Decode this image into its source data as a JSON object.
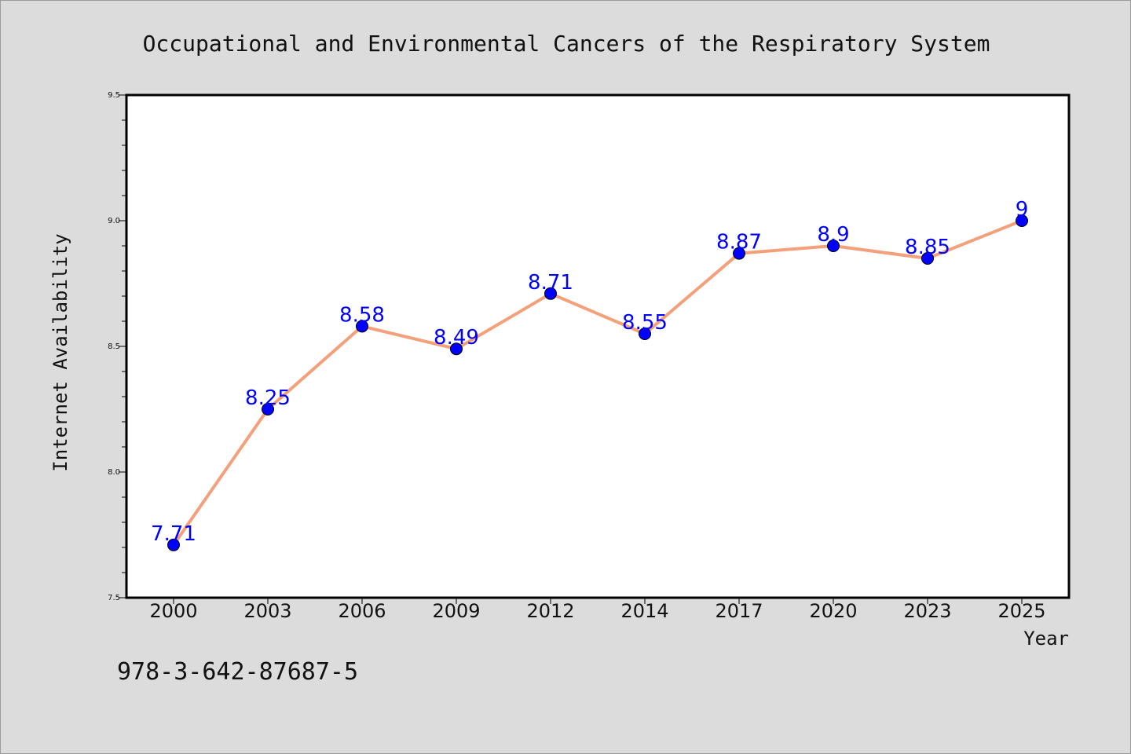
{
  "chart_data": {
    "type": "line",
    "title": "Occupational and Environmental Cancers of the Respiratory System",
    "xlabel": "Year",
    "ylabel": "Internet Availability",
    "categories": [
      "2000",
      "2003",
      "2006",
      "2009",
      "2012",
      "2014",
      "2017",
      "2020",
      "2023",
      "2025"
    ],
    "values": [
      7.71,
      8.25,
      8.58,
      8.49,
      8.71,
      8.55,
      8.87,
      8.9,
      8.85,
      9
    ],
    "data_labels": [
      "7.71",
      "8.25",
      "8.58",
      "8.49",
      "8.71",
      "8.55",
      "8.87",
      "8.9",
      "8.85",
      "9"
    ],
    "ylim": [
      7.5,
      9.5
    ],
    "yticks": [
      "7.5",
      "8.0",
      "8.5",
      "9.0",
      "9.5"
    ],
    "grid": false,
    "line_color": "#f4a07a",
    "marker_color": "#0000ff",
    "label_color": "#0000ff"
  },
  "footer": {
    "isbn": "978-3-642-87687-5"
  }
}
